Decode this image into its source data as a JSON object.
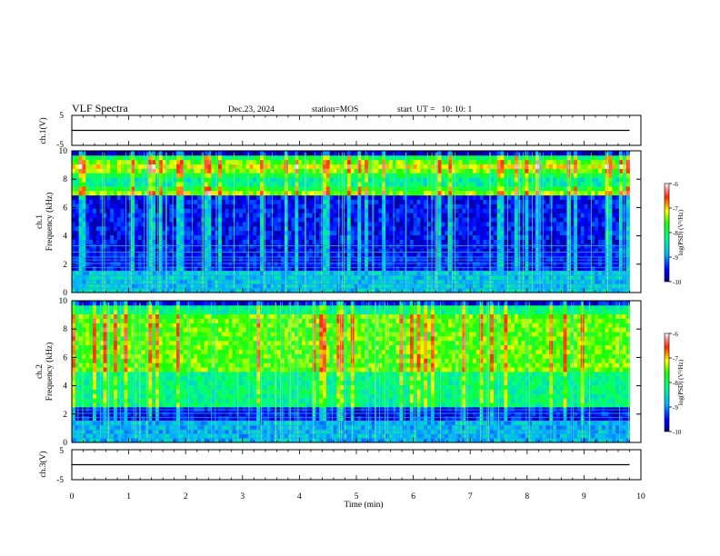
{
  "header": {
    "title": "VLF Spectra",
    "date": "Dec.23, 2024",
    "station": "station=MOS",
    "start_ut": "start  UT =   10: 10: 1"
  },
  "chart_data": [
    {
      "type": "line",
      "name": "ch1-waveform",
      "ylabel": "ch.1(V)",
      "ylim": [
        -5,
        5
      ],
      "y_ticks": [
        "5",
        "-5"
      ],
      "xlim": [
        0,
        10
      ],
      "level": 0,
      "x": [
        0,
        9.8
      ],
      "values": [
        0,
        0
      ],
      "grid": false
    },
    {
      "type": "heatmap",
      "name": "ch1-spectrogram",
      "ylabel": "ch.1\nFrequency (kHz)",
      "xlim": [
        0,
        10
      ],
      "ylim": [
        0,
        10
      ],
      "y_ticks": [
        "0",
        "2",
        "4",
        "6",
        "8",
        "10"
      ],
      "data_x_end": 9.8,
      "colorbar": {
        "label": "log(PSD) (V²/Hz)",
        "range": [
          -10,
          -6
        ],
        "ticks": [
          "-6",
          "-7",
          "-8",
          "-9",
          "-10"
        ]
      },
      "noise_lines_khz": [
        0.3,
        0.6,
        0.85,
        1.2,
        1.5,
        1.75,
        2.05,
        2.3,
        2.5,
        2.85,
        3.3
      ],
      "band_khz": [
        6.8,
        9.6
      ]
    },
    {
      "type": "heatmap",
      "name": "ch2-spectrogram",
      "ylabel": "ch.2\nFrequency (kHz)",
      "xlim": [
        0,
        10
      ],
      "ylim": [
        0,
        10
      ],
      "y_ticks": [
        "0",
        "2",
        "4",
        "6",
        "8",
        "10"
      ],
      "data_x_end": 9.8,
      "colorbar": {
        "label": "log(PSD) (V²/Hz)",
        "range": [
          -10,
          -6
        ],
        "ticks": [
          "-6",
          "-7",
          "-8",
          "-9",
          "-10"
        ]
      },
      "noise_lines_khz": [
        0.3,
        0.6,
        0.85,
        1.2,
        1.5,
        1.75,
        2.05,
        2.3
      ],
      "band_khz": [
        2.5,
        9.8
      ]
    },
    {
      "type": "line",
      "name": "ch3-waveform",
      "ylabel": "ch.3(V)",
      "ylim": [
        -5,
        5
      ],
      "y_ticks": [
        "5",
        "-5"
      ],
      "xlim": [
        0,
        10
      ],
      "level": 0,
      "x": [
        0,
        9.8
      ],
      "values": [
        0,
        0
      ],
      "grid": false
    }
  ],
  "x_axis": {
    "xlabel": "Time (min)",
    "ticks": [
      "0",
      "1",
      "2",
      "3",
      "4",
      "5",
      "6",
      "7",
      "8",
      "9",
      "10"
    ]
  }
}
